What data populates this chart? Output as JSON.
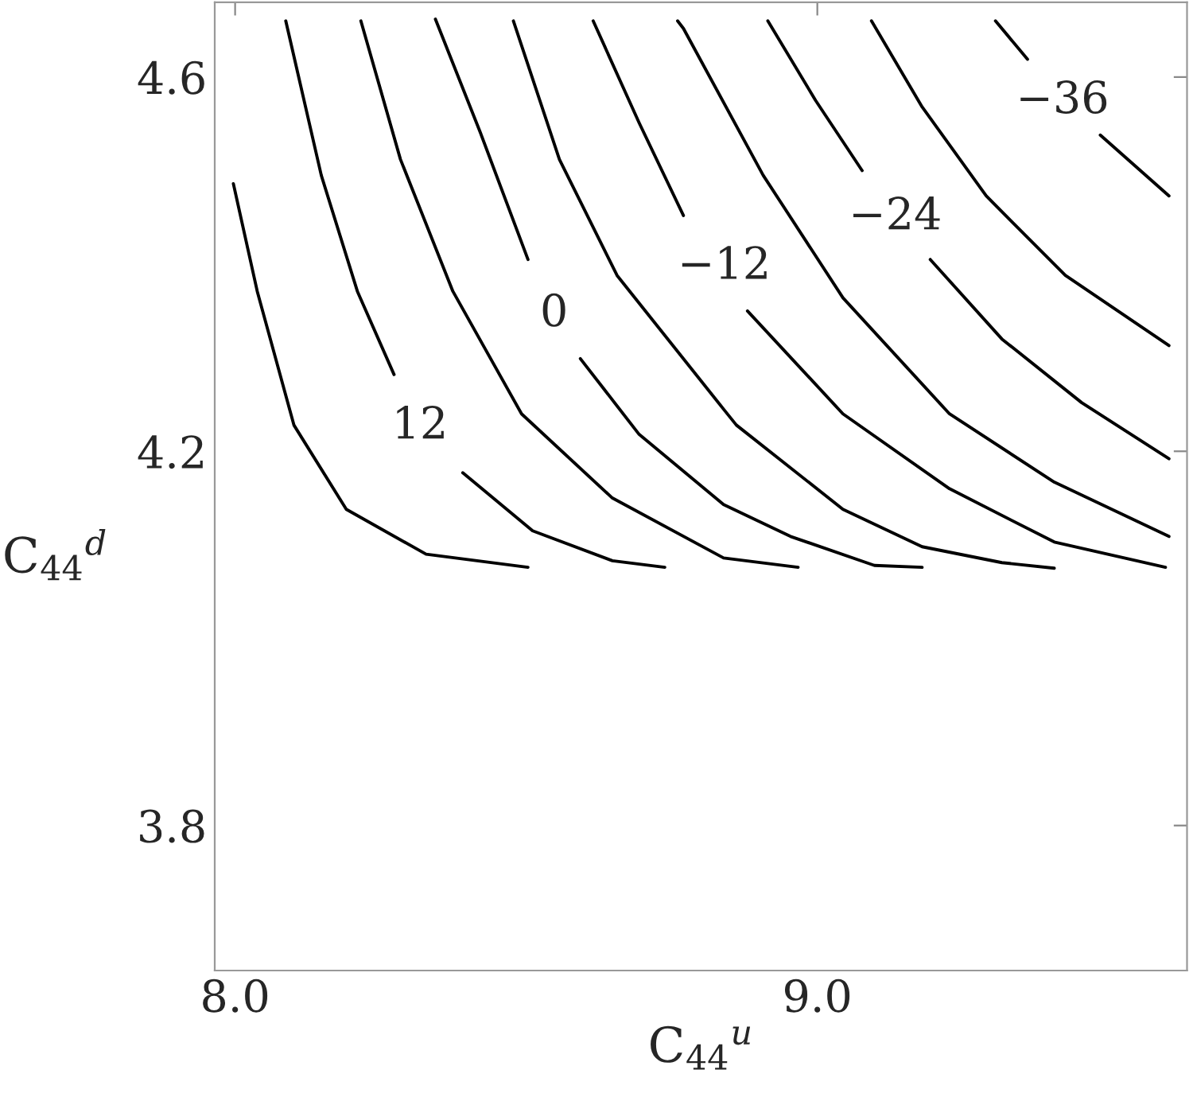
{
  "chart_data": {
    "type": "line",
    "xlabel": "C$_{44}$$^{u}$",
    "ylabel": "C$_{44}$$^{d}$",
    "xlim": [
      7.965,
      9.635
    ],
    "ylim": [
      3.645,
      4.68
    ],
    "xticks": [
      {
        "value": 8,
        "label": "8.0"
      },
      {
        "value": 9,
        "label": "9.0"
      }
    ],
    "yticks": [
      3.8,
      4.2,
      4.6
    ],
    "grid": false,
    "marker": "none",
    "line_style": "solid",
    "series": [
      {
        "color": "#000000",
        "x": [
          7.997,
          8.038,
          8.101,
          8.191,
          8.328,
          8.503
        ],
        "values": [
          4.486,
          4.371,
          4.228,
          4.138,
          4.09,
          4.076
        ]
      },
      {
        "color": "#000000",
        "x": [
          8.087,
          8.148,
          8.21,
          8.273,
          8.28,
          8.391,
          8.511,
          8.648,
          8.738
        ],
        "values": [
          4.66,
          4.495,
          4.371,
          4.282,
          null,
          4.177,
          4.115,
          4.083,
          4.076
        ]
      },
      {
        "color": "#000000",
        "x": [
          8.216,
          8.284,
          8.374,
          8.492,
          8.648,
          8.839,
          8.967
        ],
        "values": [
          4.66,
          4.512,
          4.371,
          4.24,
          4.15,
          4.086,
          4.076
        ]
      },
      {
        "color": "#000000",
        "x": [
          8.344,
          8.421,
          8.503,
          8.55,
          8.593,
          8.694,
          8.839,
          8.954,
          9.098,
          9.18
        ],
        "values": [
          4.662,
          4.541,
          4.405,
          null,
          4.299,
          4.218,
          4.143,
          4.109,
          4.078,
          4.076
        ]
      },
      {
        "color": "#000000",
        "x": [
          8.478,
          8.557,
          8.656,
          8.839,
          8.861,
          9.044,
          9.18,
          9.317,
          9.407
        ],
        "values": [
          4.66,
          4.512,
          4.388,
          4.245,
          4.228,
          4.138,
          4.098,
          4.081,
          4.075
        ]
      },
      {
        "color": "#000000",
        "x": [
          8.615,
          8.694,
          8.77,
          8.83,
          8.88,
          9.044,
          9.227,
          9.407,
          9.598
        ],
        "values": [
          4.66,
          4.551,
          4.452,
          null,
          4.35,
          4.24,
          4.16,
          4.103,
          4.076
        ]
      },
      {
        "color": "#000000",
        "x": [
          8.76,
          8.77,
          8.907,
          9.044,
          9.227,
          9.407,
          9.604
        ],
        "values": [
          4.66,
          4.652,
          4.495,
          4.364,
          4.24,
          4.167,
          4.109
        ]
      },
      {
        "color": "#000000",
        "x": [
          8.915,
          8.997,
          9.077,
          9.13,
          9.194,
          9.317,
          9.454,
          9.604
        ],
        "values": [
          4.66,
          4.575,
          4.5,
          null,
          4.405,
          4.32,
          4.252,
          4.192
        ]
      },
      {
        "color": "#000000",
        "x": [
          9.093,
          9.18,
          9.29,
          9.426,
          9.604
        ],
        "values": [
          4.66,
          4.568,
          4.473,
          4.388,
          4.313
        ]
      },
      {
        "color": "#000000",
        "x": [
          9.306,
          9.361,
          9.42,
          9.486,
          9.604
        ],
        "values": [
          4.66,
          4.619,
          null,
          4.538,
          4.473
        ]
      }
    ],
    "annotations": [
      "12",
      "0",
      "−12",
      "−24",
      "−36"
    ]
  }
}
